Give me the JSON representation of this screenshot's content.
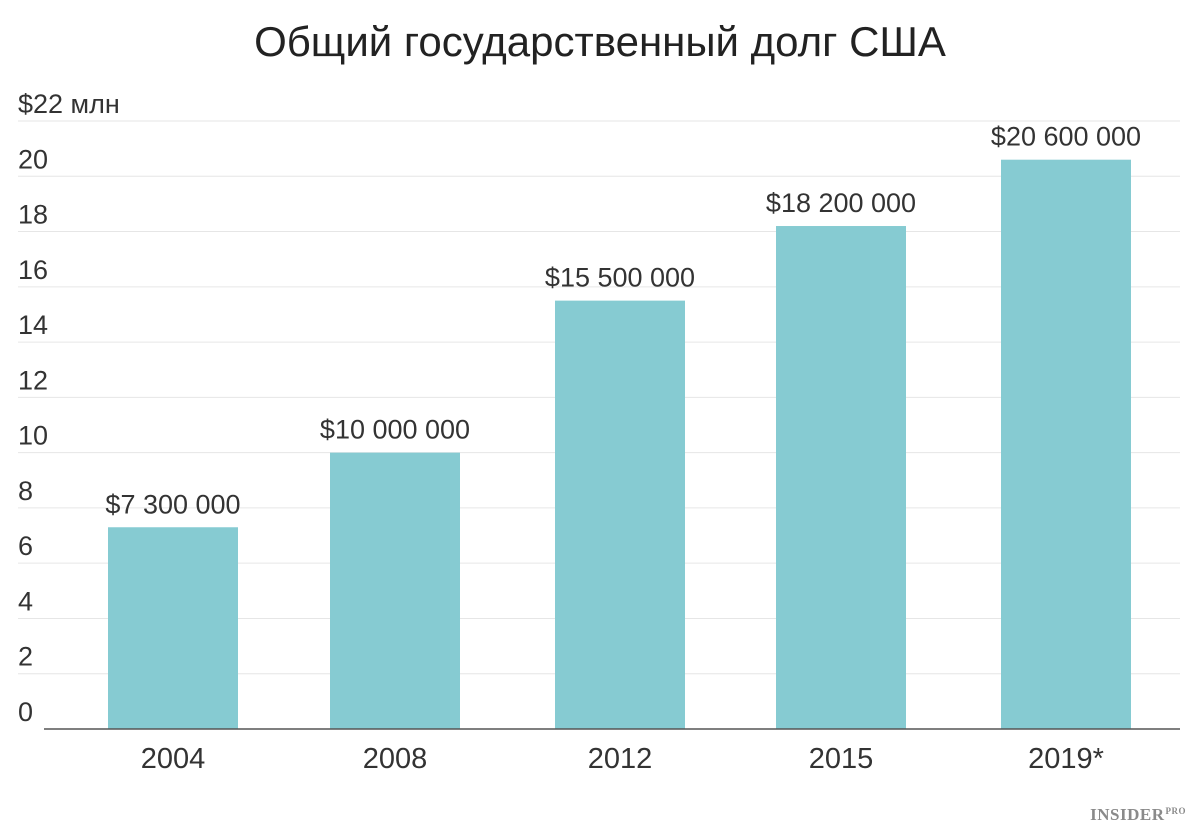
{
  "chart_data": {
    "type": "bar",
    "title": "Общий государственный долг США",
    "categories": [
      "2004",
      "2008",
      "2012",
      "2015",
      "2019*"
    ],
    "values": [
      7.3,
      10.0,
      15.5,
      18.2,
      20.6
    ],
    "data_labels": [
      "$7 300 000",
      "$10 000 000",
      "$15 500 000",
      "$18 200 000",
      "$20 600 000"
    ],
    "y_ticks": [
      0,
      2,
      4,
      6,
      8,
      10,
      12,
      14,
      16,
      18,
      20,
      22
    ],
    "y_tick_labels": [
      "0",
      "2",
      "4",
      "6",
      "8",
      "10",
      "12",
      "14",
      "16",
      "18",
      "20",
      "$22 млн"
    ],
    "ylim": [
      0,
      22
    ],
    "xlabel": "",
    "ylabel": "",
    "grid": true,
    "legend": "none",
    "colors": {
      "bar": "#86cbd2",
      "grid": "#e6e6e6",
      "axis": "#555555",
      "text": "#333333"
    }
  },
  "branding": {
    "logo_text": "INSIDER",
    "logo_suffix": "PRO"
  }
}
